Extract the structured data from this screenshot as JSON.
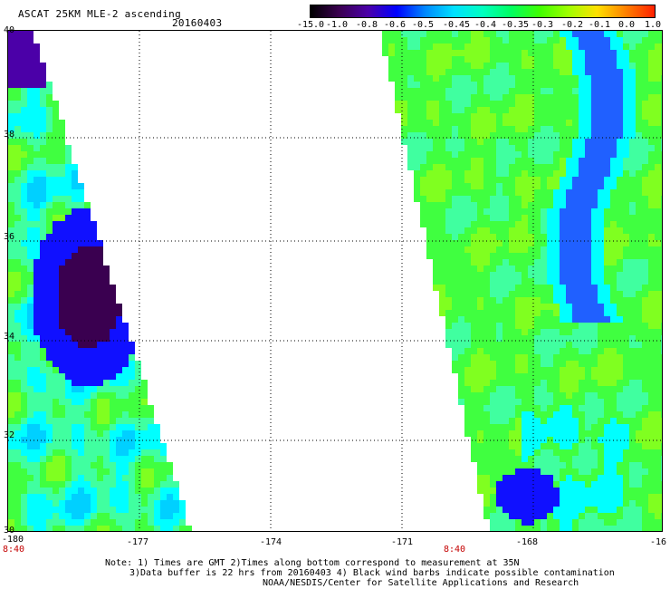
{
  "header": {
    "title": "ASCAT 25KM MLE-2 ascending",
    "date": "20160403"
  },
  "colorbar": {
    "labels": [
      "-15.0",
      "-1.0",
      "-0.8",
      "-0.6",
      "-0.5",
      "-0.45",
      "-0.4",
      "-0.35",
      "-0.3",
      "-0.2",
      "-0.1",
      "0.0",
      "1.0"
    ],
    "colors": [
      "#000000",
      "#3a0050",
      "#4b00a8",
      "#0000ff",
      "#0088ff",
      "#00e0ff",
      "#00ffc0",
      "#00ff60",
      "#40ff00",
      "#a0ff00",
      "#ffe000",
      "#ff8000",
      "#ff2000"
    ]
  },
  "map": {
    "x_ticks": [
      "-180",
      "-177",
      "-174",
      "-171",
      "-168",
      "-16"
    ],
    "y_ticks": [
      "40",
      "38",
      "36",
      "34",
      "32",
      "30"
    ],
    "time_labels": [
      "8:40",
      "8:40"
    ],
    "swaths": [
      {
        "name": "west-swath",
        "lon_range": [
          -180,
          -177.5
        ],
        "lat_range": [
          30,
          40
        ]
      },
      {
        "name": "east-swath",
        "lon_range": [
          -170.6,
          -165
        ],
        "lat_range": [
          30,
          40
        ]
      }
    ]
  },
  "notes": {
    "line1": "Note: 1) Times are GMT 2)Times along bottom correspond to measurement at 35N",
    "line2": "3)Data buffer is 22 hrs from 20160403 4) Black wind barbs indicate possible contamination",
    "line3": "NOAA/NESDIS/Center for Satellite Applications and Research"
  }
}
